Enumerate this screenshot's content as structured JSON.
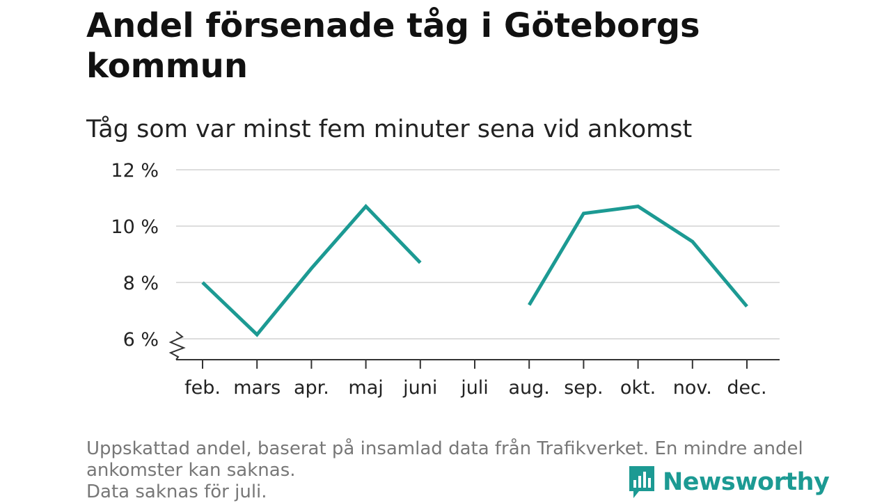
{
  "title": "Andel försenade tåg i Göteborgs kommun",
  "subtitle": "Tåg som var minst fem minuter sena vid ankomst",
  "footnote": {
    "line1": "Uppskattad andel, baserat på insamlad data från Trafikverket. En mindre andel ankomster kan saknas.",
    "line2": "Data saknas för juli."
  },
  "brand": {
    "name": "Newsworthy",
    "color": "#1c9a93",
    "icon": "bar-chart-speech-bubble-icon"
  },
  "colors": {
    "line": "#1c9a93",
    "grid": "#dddddd",
    "axis": "#333333"
  },
  "chart_data": {
    "type": "line",
    "categories": [
      "feb.",
      "mars",
      "apr.",
      "maj",
      "juni",
      "juli",
      "aug.",
      "sep.",
      "okt.",
      "nov.",
      "dec."
    ],
    "series": [
      {
        "values": [
          8.0,
          6.15,
          8.5,
          10.7,
          8.7,
          null,
          7.2,
          10.45,
          10.7,
          9.45,
          7.15
        ]
      }
    ],
    "yticks": [
      6,
      8,
      10,
      12
    ],
    "ytick_labels": [
      "6 %",
      "8 %",
      "10 %",
      "12 %"
    ],
    "ylim": [
      6,
      12
    ],
    "y_axis_break": true,
    "grid": true,
    "xlabel": "",
    "ylabel": ""
  }
}
